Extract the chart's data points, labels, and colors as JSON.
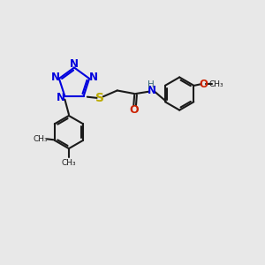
{
  "bg_color": "#e8e8e8",
  "bond_color": "#1a1a1a",
  "blue_color": "#0000dd",
  "yellow_color": "#bbaa00",
  "red_color": "#cc2200",
  "teal_color": "#336677",
  "line_width": 1.5,
  "font_size": 8.5,
  "xlim": [
    0,
    10
  ],
  "ylim": [
    0,
    10
  ]
}
